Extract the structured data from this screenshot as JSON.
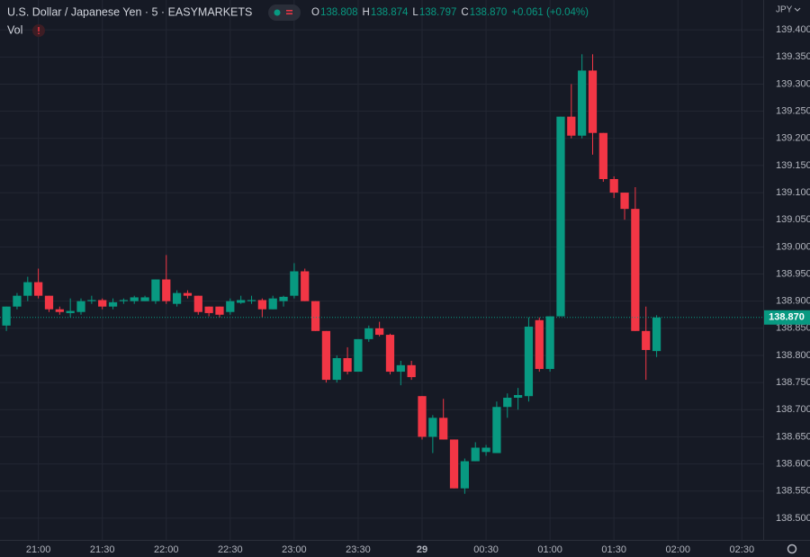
{
  "chart_data": {
    "type": "candlestick",
    "title": "U.S. Dollar / Japanese Yen · 5 · EASYMARKETS",
    "indicator": "Vol",
    "currency": "JPY",
    "legend": [
      {
        "key": "O",
        "value": "138.808"
      },
      {
        "key": "H",
        "value": "138.874"
      },
      {
        "key": "L",
        "value": "138.797"
      },
      {
        "key": "C",
        "value": "138.870"
      }
    ],
    "change": "+0.061 (+0.04%)",
    "up_color": "#089981",
    "down_color": "#f23645",
    "grid": true,
    "last_price": {
      "value": 138.87,
      "label": "138.870"
    },
    "x": [
      "20:45",
      "20:50",
      "20:55",
      "21:00",
      "21:05",
      "21:10",
      "21:15",
      "21:20",
      "21:25",
      "21:30",
      "21:35",
      "21:40",
      "21:45",
      "21:50",
      "21:55",
      "22:00",
      "22:05",
      "22:10",
      "22:15",
      "22:20",
      "22:25",
      "22:30",
      "22:35",
      "22:40",
      "22:45",
      "22:50",
      "22:55",
      "23:00",
      "23:05",
      "23:10",
      "23:15",
      "23:20",
      "23:25",
      "23:30",
      "23:35",
      "23:40",
      "23:45",
      "23:50",
      "23:55",
      "00:00",
      "00:05",
      "00:10",
      "00:15",
      "00:20",
      "00:25",
      "00:30",
      "00:35",
      "00:40",
      "00:45",
      "00:50",
      "00:55",
      "01:00",
      "01:05",
      "01:10",
      "01:15",
      "01:20",
      "01:25",
      "01:30",
      "01:35",
      "01:40",
      "01:45",
      "01:50"
    ],
    "open": [
      138.855,
      138.89,
      138.91,
      138.935,
      138.91,
      138.885,
      138.878,
      138.88,
      138.9,
      138.902,
      138.89,
      138.9,
      138.9,
      138.9,
      138.9,
      138.94,
      138.895,
      138.915,
      138.91,
      138.89,
      138.89,
      138.88,
      138.897,
      138.9,
      138.902,
      138.885,
      138.9,
      138.91,
      138.955,
      138.9,
      138.845,
      138.755,
      138.795,
      138.77,
      138.83,
      138.85,
      138.838,
      138.77,
      138.782,
      138.725,
      138.65,
      138.685,
      138.645,
      138.555,
      138.605,
      138.622,
      138.62,
      138.705,
      138.722,
      138.725,
      138.865,
      138.775,
      138.872,
      139.24,
      139.205,
      139.325,
      139.21,
      139.125,
      139.1,
      139.07,
      138.845,
      138.808
    ],
    "high": [
      138.89,
      138.915,
      138.945,
      138.96,
      138.91,
      138.89,
      138.905,
      138.905,
      138.91,
      138.905,
      138.905,
      138.905,
      138.91,
      138.91,
      138.94,
      138.985,
      138.92,
      138.92,
      138.91,
      138.89,
      138.89,
      138.905,
      138.91,
      138.91,
      138.905,
      138.91,
      138.91,
      138.97,
      138.96,
      138.9,
      138.845,
      138.8,
      138.815,
      138.83,
      138.855,
      138.862,
      138.84,
      138.79,
      138.79,
      138.725,
      138.69,
      138.72,
      138.645,
      138.61,
      138.64,
      138.635,
      138.715,
      138.73,
      138.74,
      138.87,
      138.87,
      138.872,
      139.24,
      139.3,
      139.355,
      139.355,
      139.21,
      139.13,
      139.1,
      139.11,
      138.89,
      138.874
    ],
    "low": [
      138.845,
      138.885,
      138.9,
      138.905,
      138.88,
      138.875,
      138.87,
      138.875,
      138.895,
      138.885,
      138.885,
      138.895,
      138.895,
      138.9,
      138.895,
      138.895,
      138.89,
      138.905,
      138.875,
      138.872,
      138.87,
      138.875,
      138.895,
      138.895,
      138.87,
      138.885,
      138.89,
      138.905,
      138.9,
      138.845,
      138.75,
      138.75,
      138.765,
      138.77,
      138.825,
      138.835,
      138.765,
      138.745,
      138.755,
      138.645,
      138.62,
      138.645,
      138.555,
      138.545,
      138.605,
      138.615,
      138.62,
      138.685,
      138.7,
      138.715,
      138.77,
      138.77,
      138.872,
      139.2,
      139.2,
      139.17,
      139.12,
      139.09,
      139.05,
      138.845,
      138.755,
      138.797
    ],
    "close": [
      138.89,
      138.91,
      138.935,
      138.91,
      138.885,
      138.88,
      138.882,
      138.9,
      138.902,
      138.89,
      138.898,
      138.902,
      138.907,
      138.907,
      138.94,
      138.9,
      138.915,
      138.91,
      138.88,
      138.878,
      138.875,
      138.9,
      138.902,
      138.902,
      138.885,
      138.905,
      138.908,
      138.955,
      138.9,
      138.845,
      138.755,
      138.795,
      138.77,
      138.83,
      138.85,
      138.838,
      138.77,
      138.782,
      138.76,
      138.65,
      138.685,
      138.645,
      138.555,
      138.605,
      138.63,
      138.63,
      138.705,
      138.722,
      138.727,
      138.853,
      138.775,
      138.872,
      139.24,
      139.205,
      139.325,
      139.21,
      139.125,
      139.1,
      139.07,
      138.845,
      138.81,
      138.87
    ],
    "xlim": [
      "20:42",
      "02:40"
    ],
    "xticks": [
      {
        "value": "21:00",
        "label": "21:00"
      },
      {
        "value": "21:30",
        "label": "21:30"
      },
      {
        "value": "22:00",
        "label": "22:00"
      },
      {
        "value": "22:30",
        "label": "22:30"
      },
      {
        "value": "23:00",
        "label": "23:00"
      },
      {
        "value": "23:30",
        "label": "23:30"
      },
      {
        "value": "00:00",
        "label": "29"
      },
      {
        "value": "00:30",
        "label": "00:30"
      },
      {
        "value": "01:00",
        "label": "01:00"
      },
      {
        "value": "01:30",
        "label": "01:30"
      },
      {
        "value": "02:00",
        "label": "02:00"
      },
      {
        "value": "02:30",
        "label": "02:30"
      }
    ],
    "ylim": [
      138.46,
      139.455
    ],
    "yticks": [
      {
        "value": 138.5,
        "label": "138.500"
      },
      {
        "value": 138.55,
        "label": "138.550"
      },
      {
        "value": 138.6,
        "label": "138.600"
      },
      {
        "value": 138.65,
        "label": "138.650"
      },
      {
        "value": 138.7,
        "label": "138.700"
      },
      {
        "value": 138.75,
        "label": "138.750"
      },
      {
        "value": 138.8,
        "label": "138.800"
      },
      {
        "value": 138.85,
        "label": "138.850"
      },
      {
        "value": 138.9,
        "label": "138.900"
      },
      {
        "value": 138.95,
        "label": "138.950"
      },
      {
        "value": 139.0,
        "label": "139.000"
      },
      {
        "value": 139.05,
        "label": "139.050"
      },
      {
        "value": 139.1,
        "label": "139.100"
      },
      {
        "value": 139.15,
        "label": "139.150"
      },
      {
        "value": 139.2,
        "label": "139.200"
      },
      {
        "value": 139.25,
        "label": "139.250"
      },
      {
        "value": 139.3,
        "label": "139.300"
      },
      {
        "value": 139.35,
        "label": "139.350"
      },
      {
        "value": 139.4,
        "label": "139.400"
      }
    ]
  }
}
